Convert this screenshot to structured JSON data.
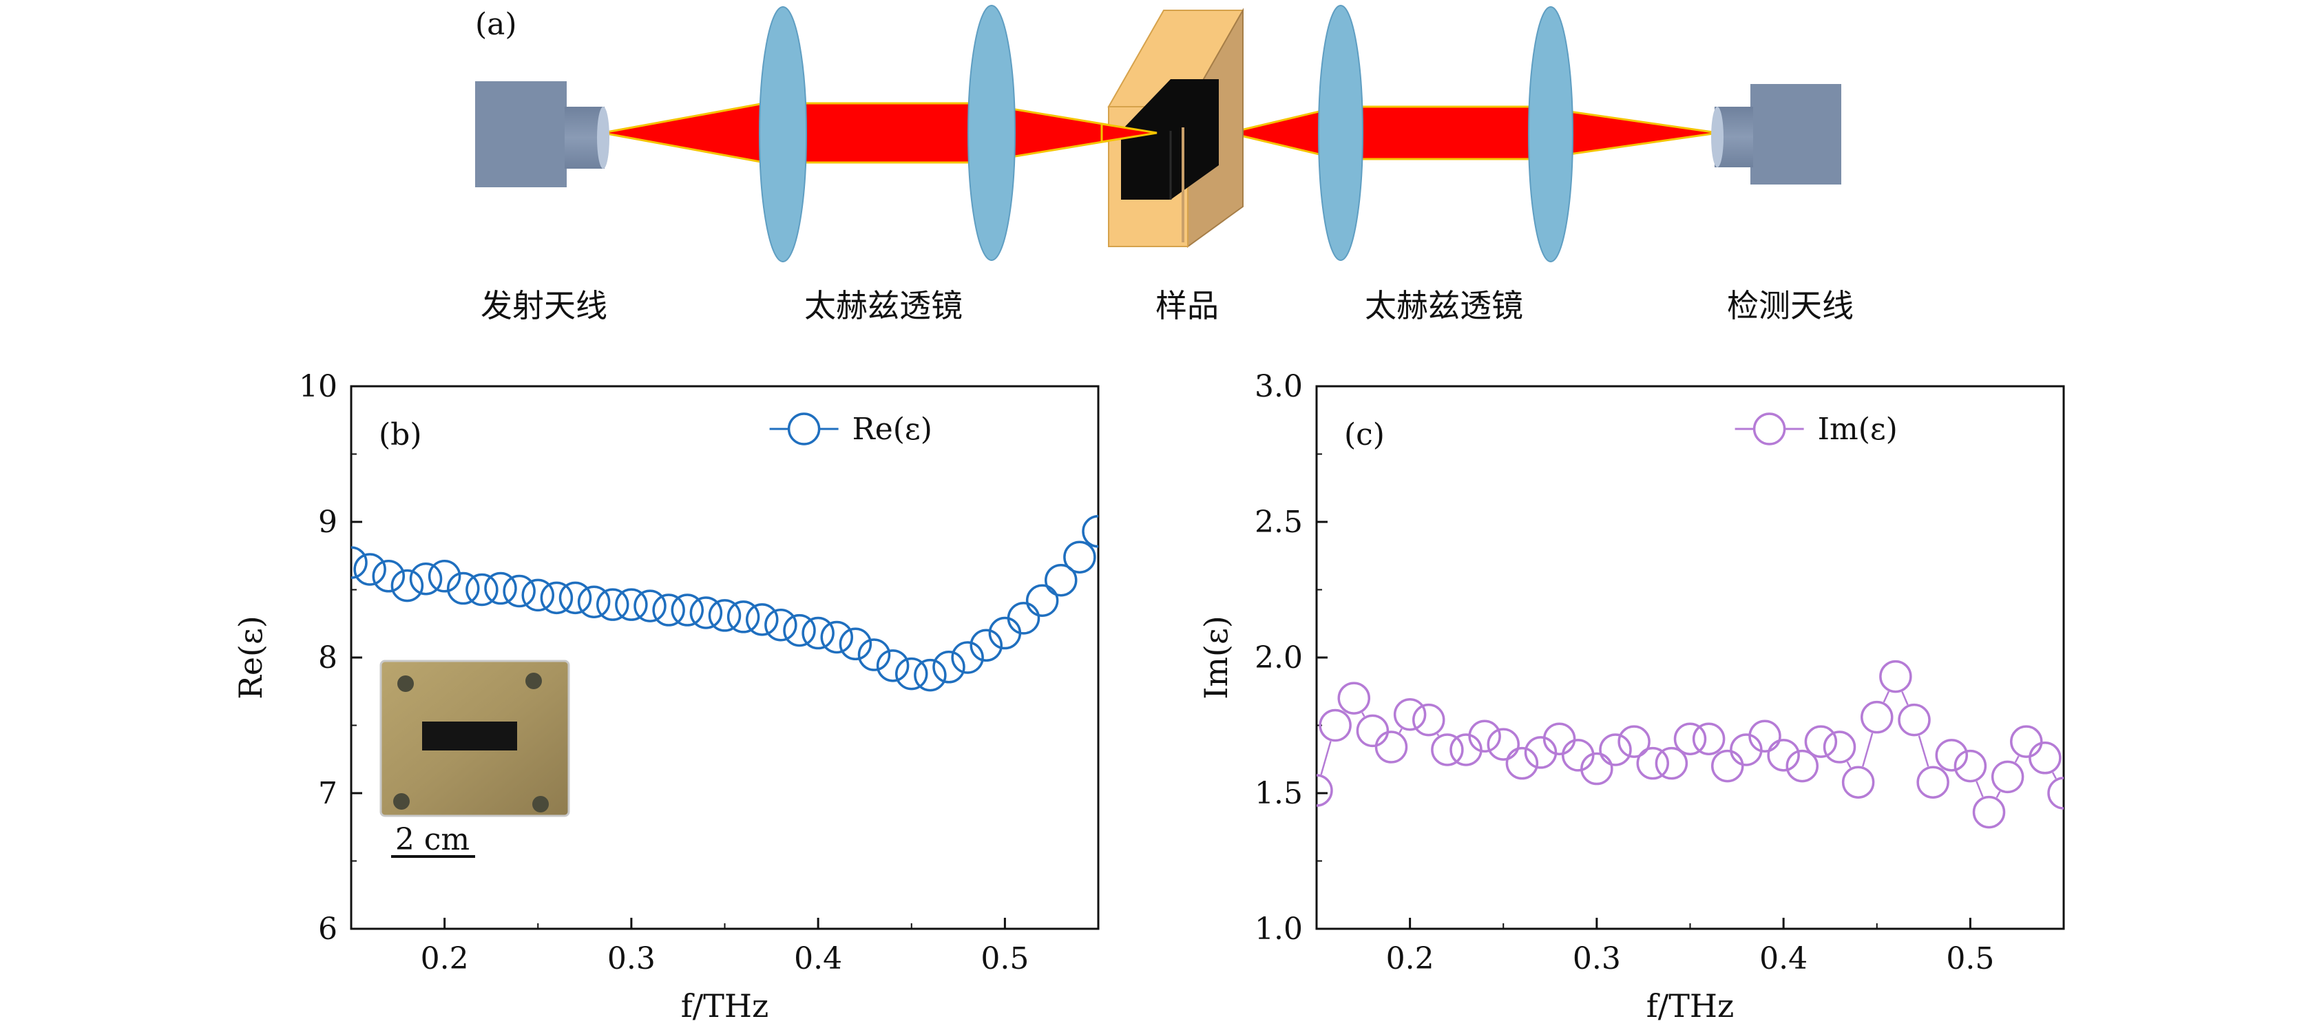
{
  "panel_a": {
    "label": "(a)",
    "labels": [
      "发射天线",
      "太赫兹透镜",
      "样品",
      "太赫兹透镜",
      "检测天线"
    ],
    "colors": {
      "antenna": "#7b8da8",
      "beam": "#ff0000",
      "beam_edge": "#f5c400",
      "lens": "#7fb9d6",
      "holder": "#f7c77c",
      "holder_side": "#c9a06a",
      "sample": "#0c0c0c"
    }
  },
  "chart_data": [
    {
      "type": "scatter",
      "panel_label": "(b)",
      "xlabel": "f/THz",
      "ylabel": "Re(ε)",
      "xlim": [
        0.15,
        0.55
      ],
      "ylim": [
        6,
        10
      ],
      "xticks": [
        0.2,
        0.3,
        0.4,
        0.5
      ],
      "xtick_labels": [
        "0.2",
        "0.3",
        "0.4",
        "0.5"
      ],
      "yticks": [
        6,
        7,
        8,
        9,
        10
      ],
      "ytick_labels": [
        "6",
        "7",
        "8",
        "9",
        "10"
      ],
      "legend": "top-right",
      "color": "#1f6fbf",
      "inset_scale_label": "2 cm",
      "series": [
        {
          "name": "Re(ε)",
          "x": [
            0.15,
            0.16,
            0.17,
            0.18,
            0.19,
            0.2,
            0.21,
            0.22,
            0.23,
            0.24,
            0.25,
            0.26,
            0.27,
            0.28,
            0.29,
            0.3,
            0.31,
            0.32,
            0.33,
            0.34,
            0.35,
            0.36,
            0.37,
            0.38,
            0.39,
            0.4,
            0.41,
            0.42,
            0.43,
            0.44,
            0.45,
            0.46,
            0.47,
            0.48,
            0.49,
            0.5,
            0.51,
            0.52,
            0.53,
            0.54,
            0.55
          ],
          "values": [
            8.7,
            8.65,
            8.6,
            8.53,
            8.58,
            8.6,
            8.51,
            8.5,
            8.51,
            8.49,
            8.46,
            8.44,
            8.44,
            8.41,
            8.39,
            8.39,
            8.38,
            8.35,
            8.35,
            8.33,
            8.31,
            8.3,
            8.28,
            8.24,
            8.2,
            8.18,
            8.15,
            8.1,
            8.02,
            7.94,
            7.88,
            7.87,
            7.93,
            8.0,
            8.09,
            8.18,
            8.29,
            8.42,
            8.57,
            8.74,
            8.93
          ]
        }
      ]
    },
    {
      "type": "scatter",
      "panel_label": "(c)",
      "xlabel": "f/THz",
      "ylabel": "Im(ε)",
      "xlim": [
        0.15,
        0.55
      ],
      "ylim": [
        1.0,
        3.0
      ],
      "xticks": [
        0.2,
        0.3,
        0.4,
        0.5
      ],
      "xtick_labels": [
        "0.2",
        "0.3",
        "0.4",
        "0.5"
      ],
      "yticks": [
        1.0,
        1.5,
        2.0,
        2.5,
        3.0
      ],
      "ytick_labels": [
        "1.0",
        "1.5",
        "2.0",
        "2.5",
        "3.0"
      ],
      "legend": "top-right",
      "color": "#b57bd6",
      "series": [
        {
          "name": "Im(ε)",
          "x": [
            0.15,
            0.16,
            0.17,
            0.18,
            0.19,
            0.2,
            0.21,
            0.22,
            0.23,
            0.24,
            0.25,
            0.26,
            0.27,
            0.28,
            0.29,
            0.3,
            0.31,
            0.32,
            0.33,
            0.34,
            0.35,
            0.36,
            0.37,
            0.38,
            0.39,
            0.4,
            0.41,
            0.42,
            0.43,
            0.44,
            0.45,
            0.46,
            0.47,
            0.48,
            0.49,
            0.5,
            0.51,
            0.52,
            0.53,
            0.54,
            0.55
          ],
          "values": [
            1.51,
            1.75,
            1.85,
            1.73,
            1.67,
            1.79,
            1.77,
            1.66,
            1.66,
            1.71,
            1.68,
            1.61,
            1.65,
            1.7,
            1.64,
            1.59,
            1.66,
            1.69,
            1.61,
            1.61,
            1.7,
            1.7,
            1.6,
            1.66,
            1.71,
            1.64,
            1.6,
            1.69,
            1.67,
            1.54,
            1.78,
            1.93,
            1.77,
            1.54,
            1.64,
            1.6,
            1.43,
            1.56,
            1.69,
            1.63,
            1.5
          ]
        }
      ]
    }
  ]
}
